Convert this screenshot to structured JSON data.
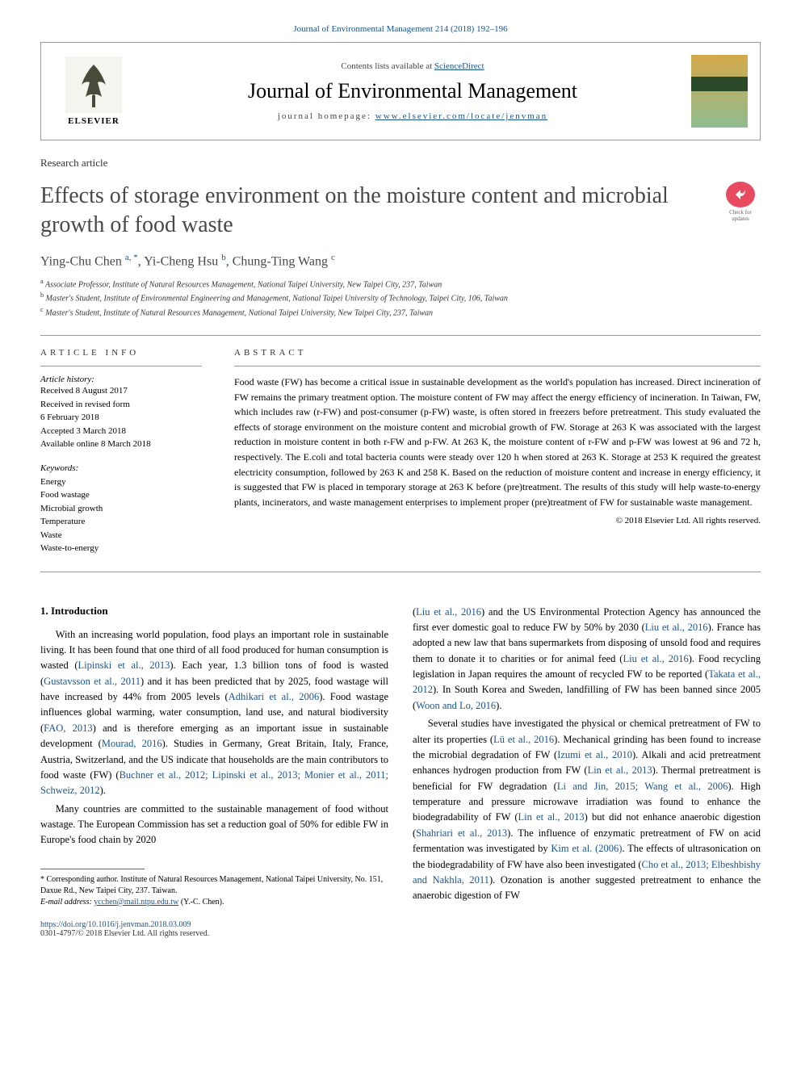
{
  "top_citation": "Journal of Environmental Management 214 (2018) 192–196",
  "header": {
    "contents_prefix": "Contents lists available at ",
    "contents_link": "ScienceDirect",
    "journal_name": "Journal of Environmental Management",
    "homepage_prefix": "journal homepage: ",
    "homepage_url": "www.elsevier.com/locate/jenvman",
    "publisher": "ELSEVIER"
  },
  "article_type": "Research article",
  "title": "Effects of storage environment on the moisture content and microbial growth of food waste",
  "crossmark_label": "Check for updates",
  "authors_html": "Ying-Chu Chen <sup>a, *</sup>, Yi-Cheng Hsu <sup>b</sup>, Chung-Ting Wang <sup>c</sup>",
  "affiliations": [
    {
      "sup": "a",
      "text": "Associate Professor, Institute of Natural Resources Management, National Taipei University, New Taipei City, 237, Taiwan"
    },
    {
      "sup": "b",
      "text": "Master's Student, Institute of Environmental Engineering and Management, National Taipei University of Technology, Taipei City, 106, Taiwan"
    },
    {
      "sup": "c",
      "text": "Master's Student, Institute of Natural Resources Management, National Taipei University, New Taipei City, 237, Taiwan"
    }
  ],
  "info_label": "ARTICLE INFO",
  "abstract_label": "ABSTRACT",
  "history": {
    "label": "Article history:",
    "items": [
      "Received 8 August 2017",
      "Received in revised form",
      "6 February 2018",
      "Accepted 3 March 2018",
      "Available online 8 March 2018"
    ]
  },
  "keywords": {
    "label": "Keywords:",
    "items": [
      "Energy",
      "Food wastage",
      "Microbial growth",
      "Temperature",
      "Waste",
      "Waste-to-energy"
    ]
  },
  "abstract_text": "Food waste (FW) has become a critical issue in sustainable development as the world's population has increased. Direct incineration of FW remains the primary treatment option. The moisture content of FW may affect the energy efficiency of incineration. In Taiwan, FW, which includes raw (r-FW) and post-consumer (p-FW) waste, is often stored in freezers before pretreatment. This study evaluated the effects of storage environment on the moisture content and microbial growth of FW. Storage at 263 K was associated with the largest reduction in moisture content in both r-FW and p-FW. At 263 K, the moisture content of r-FW and p-FW was lowest at 96 and 72 h, respectively. The E.coli and total bacteria counts were steady over 120 h when stored at 263 K. Storage at 253 K required the greatest electricity consumption, followed by 263 K and 258 K. Based on the reduction of moisture content and increase in energy efficiency, it is suggested that FW is placed in temporary storage at 263 K before (pre)treatment. The results of this study will help waste-to-energy plants, incinerators, and waste management enterprises to implement proper (pre)treatment of FW for sustainable waste management.",
  "copyright": "© 2018 Elsevier Ltd. All rights reserved.",
  "section1_heading": "1. Introduction",
  "col1": {
    "p1_a": "With an increasing world population, food plays an important role in sustainable living. It has been found that one third of all food produced for human consumption is wasted (",
    "c1": "Lipinski et al., 2013",
    "p1_b": "). Each year, 1.3 billion tons of food is wasted (",
    "c2": "Gustavsson et al., 2011",
    "p1_c": ") and it has been predicted that by 2025, food wastage will have increased by 44% from 2005 levels (",
    "c3": "Adhikari et al., 2006",
    "p1_d": "). Food wastage influences global warming, water consumption, land use, and natural biodiversity (",
    "c4": "FAO, 2013",
    "p1_e": ") and is therefore emerging as an important issue in sustainable development (",
    "c5": "Mourad, 2016",
    "p1_f": "). Studies in Germany, Great Britain, Italy, France, Austria, Switzerland, and the US indicate that households are the main contributors to food waste (FW) (",
    "c6": "Buchner et al., 2012; Lipinski et al., 2013; Monier et al., 2011; Schweiz, 2012",
    "p1_g": ").",
    "p2_a": "Many countries are committed to the sustainable management of food without wastage. The European Commission has set a reduction goal of 50% for edible FW in Europe's food chain by 2020"
  },
  "col2": {
    "p1_a": "(",
    "c1": "Liu et al., 2016",
    "p1_b": ") and the US Environmental Protection Agency has announced the first ever domestic goal to reduce FW by 50% by 2030 (",
    "c2": "Liu et al., 2016",
    "p1_c": "). France has adopted a new law that bans supermarkets from disposing of unsold food and requires them to donate it to charities or for animal feed (",
    "c3": "Liu et al., 2016",
    "p1_d": "). Food recycling legislation in Japan requires the amount of recycled FW to be reported (",
    "c4": "Takata et al., 2012",
    "p1_e": "). In South Korea and Sweden, landfilling of FW has been banned since 2005 (",
    "c5": "Woon and Lo, 2016",
    "p1_f": ").",
    "p2_a": "Several studies have investigated the physical or chemical pretreatment of FW to alter its properties (",
    "c6": "Lü et al., 2016",
    "p2_b": "). Mechanical grinding has been found to increase the microbial degradation of FW (",
    "c7": "Izumi et al., 2010",
    "p2_c": "). Alkali and acid pretreatment enhances hydrogen production from FW (",
    "c8": "Lin et al., 2013",
    "p2_d": "). Thermal pretreatment is beneficial for FW degradation (",
    "c9": "Li and Jin, 2015; Wang et al., 2006",
    "p2_e": "). High temperature and pressure microwave irradiation was found to enhance the biodegradability of FW (",
    "c10": "Lin et al., 2013",
    "p2_f": ") but did not enhance anaerobic digestion (",
    "c11": "Shahriari et al., 2013",
    "p2_g": "). The influence of enzymatic pretreatment of FW on acid fermentation was investigated by ",
    "c12": "Kim et al. (2006)",
    "p2_h": ". The effects of ultrasonication on the biodegradability of FW have also been investigated (",
    "c13": "Cho et al., 2013; Elbeshbishy and Nakhla, 2011",
    "p2_i": "). Ozonation is another suggested pretreatment to enhance the anaerobic digestion of FW"
  },
  "footnote": {
    "corr": "* Corresponding author. Institute of Natural Resources Management, National Taipei University, No. 151, Daxue Rd., New Taipei City, 237. Taiwan.",
    "email_label": "E-mail address: ",
    "email": "ycchen@mail.ntpu.edu.tw",
    "email_suffix": " (Y.-C. Chen)."
  },
  "doi": "https://doi.org/10.1016/j.jenvman.2018.03.009",
  "issn": "0301-4797/© 2018 Elsevier Ltd. All rights reserved.",
  "colors": {
    "link": "#1a5490",
    "text": "#000000",
    "title": "#484848",
    "border": "#999999",
    "crossmark": "#e84a5f"
  },
  "typography": {
    "body_pt": 12.5,
    "title_pt": 28,
    "journal_pt": 26,
    "authors_pt": 16,
    "abstract_pt": 12,
    "footnote_pt": 10,
    "affil_pt": 10,
    "meta_pt": 11
  }
}
